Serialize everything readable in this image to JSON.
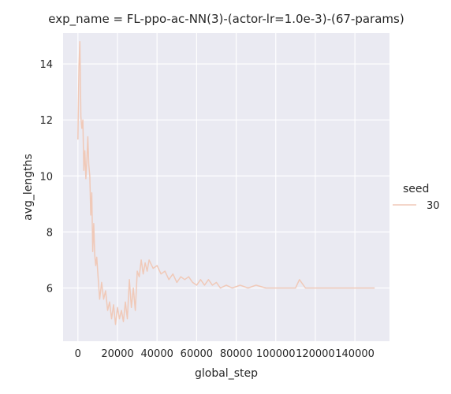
{
  "chart_data": {
    "type": "line",
    "title": "exp_name = FL-ppo-ac-NN(3)-(actor-lr=1.0e-3)-(67-params)",
    "xlabel": "global_step",
    "ylabel": "avg_lengths",
    "xlim": [
      -7500,
      157500
    ],
    "ylim": [
      4.1,
      15.1
    ],
    "xticks": [
      0,
      20000,
      40000,
      60000,
      80000,
      100000,
      120000,
      140000
    ],
    "xtick_labels": [
      "0",
      "20000",
      "40000",
      "60000",
      "80000",
      "100000",
      "120000",
      "140000"
    ],
    "yticks": [
      6,
      8,
      10,
      12,
      14
    ],
    "ytick_labels": [
      "6",
      "8",
      "10",
      "12",
      "14"
    ],
    "grid": true,
    "legend": {
      "title": "seed",
      "position": "right",
      "entries": [
        "30"
      ]
    },
    "series": [
      {
        "name": "30",
        "color": "#f0c9b8",
        "x": [
          0,
          500,
          1000,
          1500,
          2000,
          2500,
          3000,
          3500,
          4000,
          4500,
          5000,
          5500,
          6000,
          6500,
          7000,
          7500,
          8000,
          8500,
          9000,
          9500,
          10000,
          11000,
          12000,
          13000,
          14000,
          15000,
          16000,
          17000,
          18000,
          19000,
          20000,
          21000,
          22000,
          23000,
          24000,
          25000,
          26000,
          27000,
          28000,
          29000,
          30000,
          31000,
          32000,
          33000,
          34000,
          35000,
          36000,
          38000,
          40000,
          42000,
          44000,
          46000,
          48000,
          50000,
          52000,
          54000,
          56000,
          58000,
          60000,
          62000,
          64000,
          66000,
          68000,
          70000,
          72000,
          75000,
          78000,
          82000,
          86000,
          90000,
          95000,
          100000,
          105000,
          110000,
          112000,
          115000,
          120000,
          125000,
          130000,
          135000,
          140000,
          145000,
          150000
        ],
        "y": [
          11.3,
          13.9,
          14.8,
          12.1,
          11.7,
          12.0,
          10.2,
          10.9,
          9.9,
          10.5,
          11.4,
          10.4,
          10.0,
          8.6,
          9.4,
          7.3,
          8.3,
          7.2,
          6.8,
          7.1,
          6.6,
          5.6,
          6.2,
          5.6,
          5.9,
          5.2,
          5.5,
          4.9,
          5.4,
          4.7,
          5.3,
          4.9,
          5.2,
          4.8,
          5.5,
          4.9,
          6.3,
          5.3,
          6.0,
          5.2,
          6.6,
          6.4,
          7.0,
          6.5,
          6.9,
          6.6,
          7.0,
          6.7,
          6.8,
          6.5,
          6.6,
          6.3,
          6.5,
          6.2,
          6.4,
          6.3,
          6.4,
          6.2,
          6.1,
          6.3,
          6.1,
          6.3,
          6.1,
          6.2,
          6.0,
          6.1,
          6.0,
          6.1,
          6.0,
          6.1,
          6.0,
          6.0,
          6.0,
          6.0,
          6.3,
          6.0,
          6.0,
          6.0,
          6.0,
          6.0,
          6.0,
          6.0,
          6.0
        ]
      }
    ]
  }
}
